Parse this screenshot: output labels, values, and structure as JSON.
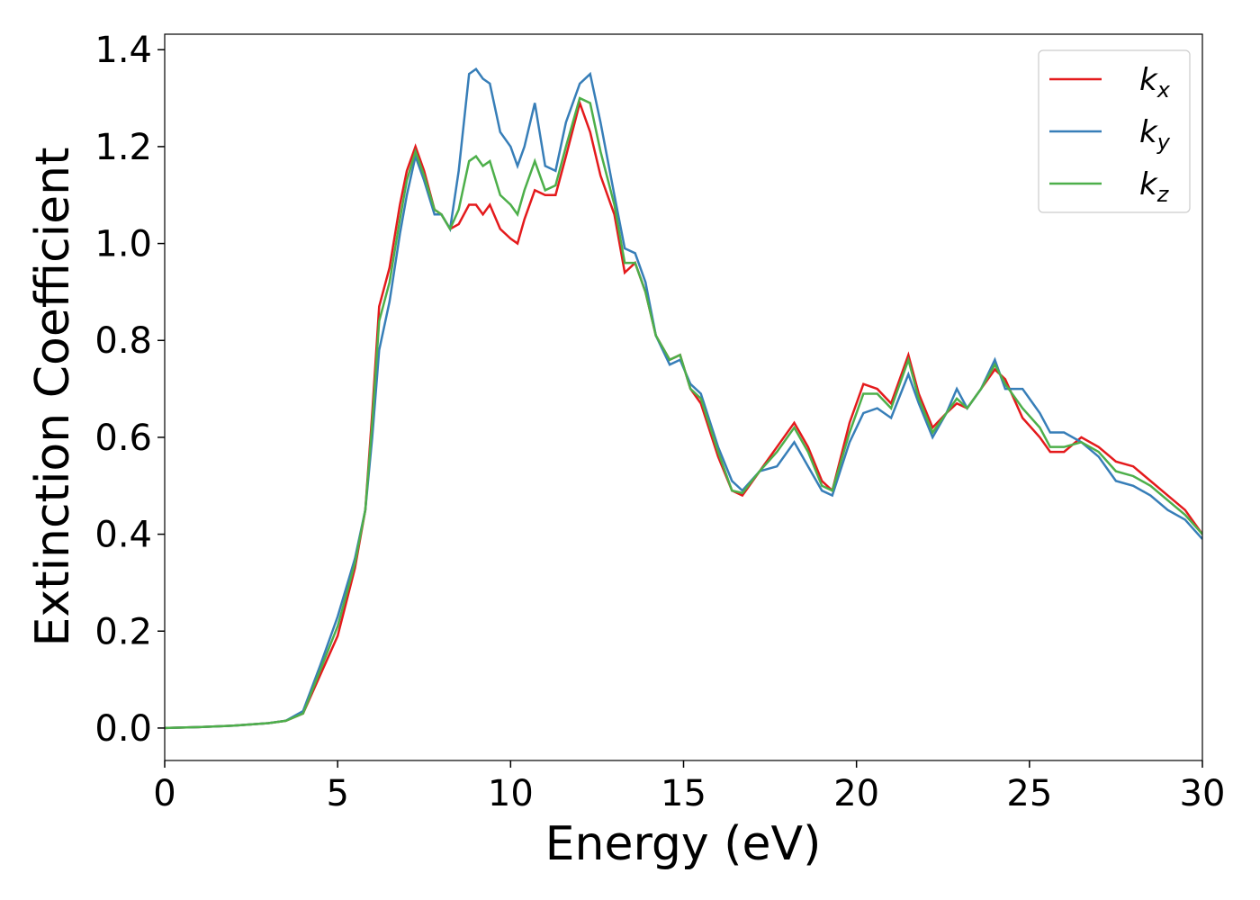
{
  "chart_data": {
    "type": "line",
    "xlabel": "Energy (eV)",
    "ylabel": "Extinction Coefficient",
    "x": [
      0,
      1,
      2,
      3,
      3.5,
      4,
      4.5,
      5,
      5.5,
      5.8,
      6.0,
      6.2,
      6.5,
      6.8,
      7.0,
      7.25,
      7.5,
      7.8,
      8.0,
      8.25,
      8.5,
      8.8,
      9.0,
      9.2,
      9.4,
      9.7,
      10.0,
      10.2,
      10.4,
      10.7,
      11.0,
      11.3,
      11.6,
      12.0,
      12.3,
      12.6,
      13.0,
      13.3,
      13.6,
      13.9,
      14.2,
      14.6,
      14.9,
      15.2,
      15.5,
      16.0,
      16.4,
      16.7,
      17.2,
      17.7,
      18.2,
      18.6,
      19.0,
      19.3,
      19.8,
      20.2,
      20.6,
      21.0,
      21.5,
      21.8,
      22.2,
      22.6,
      22.9,
      23.2,
      23.6,
      24.0,
      24.3,
      24.8,
      25.3,
      25.6,
      26.0,
      26.5,
      27.0,
      27.5,
      28.0,
      28.5,
      29.0,
      29.5,
      30.0
    ],
    "series": [
      {
        "name": "k_x",
        "color": "#e41a1c",
        "values": [
          0,
          0.002,
          0.005,
          0.01,
          0.015,
          0.03,
          0.11,
          0.19,
          0.33,
          0.45,
          0.65,
          0.87,
          0.95,
          1.08,
          1.15,
          1.2,
          1.15,
          1.07,
          1.06,
          1.03,
          1.04,
          1.08,
          1.08,
          1.06,
          1.08,
          1.03,
          1.01,
          1.0,
          1.05,
          1.11,
          1.1,
          1.1,
          1.18,
          1.29,
          1.23,
          1.14,
          1.06,
          0.94,
          0.96,
          0.9,
          0.81,
          0.76,
          0.77,
          0.7,
          0.67,
          0.56,
          0.49,
          0.48,
          0.53,
          0.58,
          0.63,
          0.58,
          0.51,
          0.49,
          0.63,
          0.71,
          0.7,
          0.67,
          0.77,
          0.69,
          0.62,
          0.65,
          0.67,
          0.66,
          0.7,
          0.74,
          0.72,
          0.64,
          0.6,
          0.57,
          0.57,
          0.6,
          0.58,
          0.55,
          0.54,
          0.51,
          0.48,
          0.45,
          0.4
        ]
      },
      {
        "name": "k_y",
        "color": "#377eb8",
        "values": [
          0,
          0.002,
          0.005,
          0.01,
          0.015,
          0.035,
          0.13,
          0.23,
          0.35,
          0.45,
          0.6,
          0.78,
          0.88,
          1.02,
          1.1,
          1.18,
          1.13,
          1.06,
          1.06,
          1.03,
          1.15,
          1.35,
          1.36,
          1.34,
          1.33,
          1.23,
          1.2,
          1.16,
          1.2,
          1.29,
          1.16,
          1.15,
          1.25,
          1.33,
          1.35,
          1.25,
          1.1,
          0.99,
          0.98,
          0.92,
          0.81,
          0.75,
          0.76,
          0.71,
          0.69,
          0.58,
          0.51,
          0.49,
          0.53,
          0.54,
          0.59,
          0.54,
          0.49,
          0.48,
          0.59,
          0.65,
          0.66,
          0.64,
          0.73,
          0.67,
          0.6,
          0.65,
          0.7,
          0.66,
          0.7,
          0.76,
          0.7,
          0.7,
          0.65,
          0.61,
          0.61,
          0.59,
          0.56,
          0.51,
          0.5,
          0.48,
          0.45,
          0.43,
          0.39
        ]
      },
      {
        "name": "k_z",
        "color": "#4daf4a",
        "values": [
          0,
          0.002,
          0.005,
          0.01,
          0.015,
          0.03,
          0.12,
          0.21,
          0.34,
          0.45,
          0.63,
          0.84,
          0.92,
          1.05,
          1.13,
          1.19,
          1.14,
          1.07,
          1.06,
          1.03,
          1.07,
          1.17,
          1.18,
          1.16,
          1.17,
          1.1,
          1.08,
          1.06,
          1.11,
          1.17,
          1.11,
          1.12,
          1.2,
          1.3,
          1.29,
          1.19,
          1.08,
          0.96,
          0.96,
          0.9,
          0.81,
          0.76,
          0.77,
          0.7,
          0.68,
          0.57,
          0.49,
          0.485,
          0.53,
          0.57,
          0.62,
          0.57,
          0.5,
          0.49,
          0.61,
          0.69,
          0.69,
          0.66,
          0.76,
          0.68,
          0.61,
          0.65,
          0.68,
          0.66,
          0.7,
          0.75,
          0.71,
          0.66,
          0.62,
          0.58,
          0.58,
          0.59,
          0.57,
          0.53,
          0.52,
          0.5,
          0.47,
          0.44,
          0.4
        ]
      }
    ],
    "xlim": [
      0,
      30
    ],
    "xticks": [
      0,
      5,
      10,
      15,
      20,
      25,
      30
    ],
    "ylim": [
      -0.067,
      1.432
    ],
    "yticks": [
      {
        "value": 0,
        "label": "0.0"
      },
      0.2,
      0.4,
      0.6,
      0.8,
      {
        "value": 1,
        "label": "1.0"
      },
      1.2,
      1.4
    ],
    "legend": "upper right"
  }
}
